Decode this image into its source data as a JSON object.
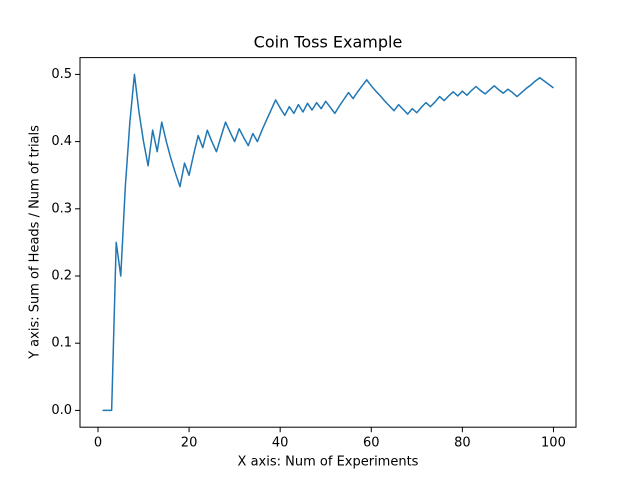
{
  "chart_data": {
    "type": "line",
    "title": "Coin Toss Example",
    "x_label": "X axis: Num of Experiments",
    "y_label": "Y axis: Sum of Heads / Num of trials",
    "color": "#1f77b4",
    "x": [
      1,
      2,
      3,
      4,
      5,
      6,
      7,
      8,
      9,
      10,
      11,
      12,
      13,
      14,
      15,
      16,
      17,
      18,
      19,
      20,
      21,
      22,
      23,
      24,
      25,
      26,
      27,
      28,
      29,
      30,
      31,
      32,
      33,
      34,
      35,
      36,
      37,
      38,
      39,
      40,
      41,
      42,
      43,
      44,
      45,
      46,
      47,
      48,
      49,
      50,
      51,
      52,
      53,
      54,
      55,
      56,
      57,
      58,
      59,
      60,
      61,
      62,
      63,
      64,
      65,
      66,
      67,
      68,
      69,
      70,
      71,
      72,
      73,
      74,
      75,
      76,
      77,
      78,
      79,
      80,
      81,
      82,
      83,
      84,
      85,
      86,
      87,
      88,
      89,
      90,
      91,
      92,
      93,
      94,
      95,
      96,
      97,
      98,
      99,
      100
    ],
    "values": [
      0,
      0,
      0,
      0.25,
      0.2,
      0.333,
      0.429,
      0.5,
      0.444,
      0.4,
      0.364,
      0.417,
      0.385,
      0.429,
      0.4,
      0.375,
      0.353,
      0.333,
      0.368,
      0.35,
      0.381,
      0.409,
      0.391,
      0.417,
      0.4,
      0.385,
      0.407,
      0.429,
      0.414,
      0.4,
      0.419,
      0.406,
      0.394,
      0.412,
      0.4,
      0.417,
      0.432,
      0.447,
      0.462,
      0.45,
      0.439,
      0.452,
      0.442,
      0.455,
      0.444,
      0.457,
      0.447,
      0.458,
      0.449,
      0.46,
      0.451,
      0.442,
      0.453,
      0.463,
      0.473,
      0.464,
      0.474,
      0.483,
      0.492,
      0.483,
      0.475,
      0.468,
      0.46,
      0.453,
      0.446,
      0.455,
      0.448,
      0.441,
      0.449,
      0.443,
      0.451,
      0.458,
      0.452,
      0.459,
      0.467,
      0.461,
      0.468,
      0.474,
      0.468,
      0.475,
      0.469,
      0.476,
      0.482,
      0.476,
      0.471,
      0.477,
      0.483,
      0.477,
      0.472,
      0.478,
      0.473,
      0.467,
      0.473,
      0.479,
      0.484,
      0.49,
      0.495,
      0.49,
      0.485,
      0.48
    ],
    "xlim": [
      -3.95,
      104.95
    ],
    "xticks": [
      0,
      20,
      40,
      60,
      80,
      100
    ],
    "ylim": [
      -0.025,
      0.525
    ],
    "yticks": [
      {
        "value": 0,
        "label": "0.0"
      },
      0.1,
      0.2,
      0.3,
      0.4,
      0.5
    ],
    "grid": false
  }
}
